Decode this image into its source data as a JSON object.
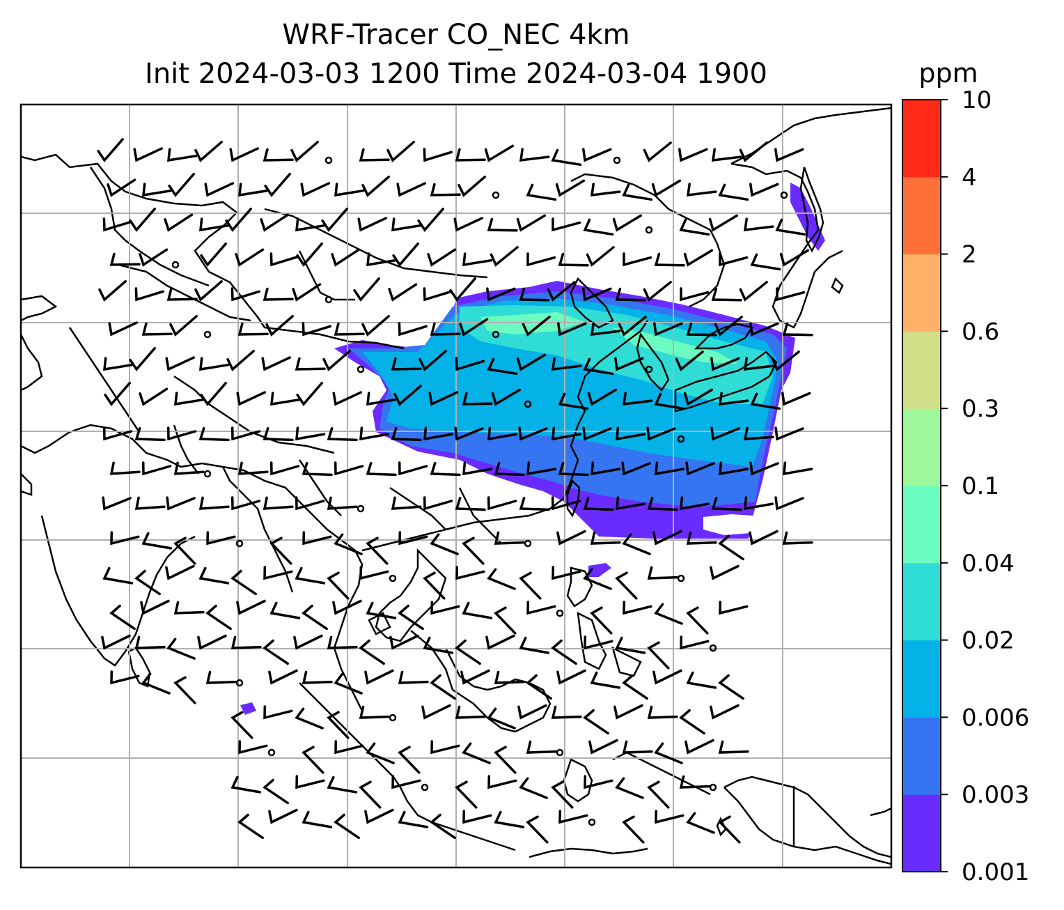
{
  "title_line1": "WRF-Tracer CO_NEC 4km",
  "title_line2": "Init 2024-03-03 1200 Time 2024-03-04 1900",
  "colorbar": {
    "unit": "ppm",
    "levels": [
      "0.001",
      "0.003",
      "0.006",
      "0.02",
      "0.04",
      "0.1",
      "0.3",
      "0.6",
      "2",
      "4",
      "10"
    ],
    "colors": [
      "#6a2bff",
      "#3575f2",
      "#04b2e8",
      "#2fdcd6",
      "#6afcc0",
      "#9ef79b",
      "#d2de88",
      "#feb068",
      "#ff7038",
      "#ff2a18"
    ]
  },
  "map": {
    "gridlines": true,
    "tracer_colors": {
      "min": "#6a2bff",
      "low": "#3575f2",
      "mid": "#04b2e8",
      "high": "#2fdcd6",
      "peak": "#6afcc0"
    },
    "wind_barbs": true,
    "coastline_color": "#000000",
    "grid_color": "#b0b0b0"
  }
}
